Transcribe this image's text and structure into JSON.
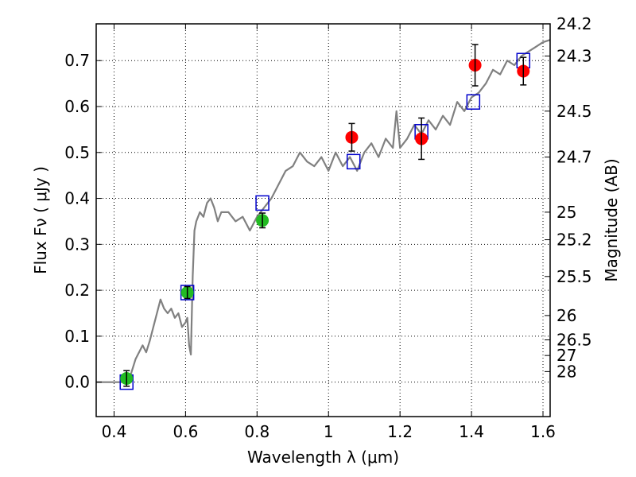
{
  "chart_data": {
    "type": "line",
    "xlabel": "Wavelength  λ (μm)",
    "ylabel": "Flux  Fν  ( μJy )",
    "y2label": "Magnitude (AB)",
    "xlim": [
      0.35,
      1.62
    ],
    "ylim": [
      -0.075,
      0.78
    ],
    "x_ticks": [
      0.4,
      0.6,
      0.8,
      1.0,
      1.2,
      1.4,
      1.6
    ],
    "x_tick_labels": [
      "0.4",
      "0.6",
      "0.8",
      "1",
      "1.2",
      "1.4",
      "1.6"
    ],
    "y_ticks": [
      0.0,
      0.1,
      0.2,
      0.3,
      0.4,
      0.5,
      0.6,
      0.7
    ],
    "y_tick_labels": [
      "0.0",
      "0.1",
      "0.2",
      "0.3",
      "0.4",
      "0.5",
      "0.6",
      "0.7"
    ],
    "magnitude_ticks": [
      {
        "mag": "24.2",
        "flux": 0.78
      },
      {
        "mag": "24.3",
        "flux": 0.71
      },
      {
        "mag": "24.5",
        "flux": 0.59
      },
      {
        "mag": "24.7",
        "flux": 0.49
      },
      {
        "mag": "25",
        "flux": 0.37
      },
      {
        "mag": "25.2",
        "flux": 0.31
      },
      {
        "mag": "25.5",
        "flux": 0.23
      },
      {
        "mag": "26",
        "flux": 0.145
      },
      {
        "mag": "26.5",
        "flux": 0.092
      },
      {
        "mag": "27",
        "flux": 0.058
      },
      {
        "mag": "28",
        "flux": 0.023
      }
    ],
    "grid": true,
    "colors": {
      "sed": "#808080",
      "model_box": "#0000cc",
      "detection": "#22bb22",
      "nir_detection": "#ff0000",
      "errorbar": "#000000"
    },
    "series": [
      {
        "kind": "line",
        "x": [
          0.35,
          0.44,
          0.46,
          0.48,
          0.49,
          0.5,
          0.51,
          0.52,
          0.53,
          0.54,
          0.55,
          0.56,
          0.57,
          0.58,
          0.59,
          0.6,
          0.605,
          0.61,
          0.615,
          0.62,
          0.625,
          0.63,
          0.64,
          0.65,
          0.66,
          0.67,
          0.68,
          0.69,
          0.7,
          0.72,
          0.74,
          0.76,
          0.78,
          0.8,
          0.81,
          0.82,
          0.84,
          0.86,
          0.88,
          0.9,
          0.92,
          0.94,
          0.96,
          0.98,
          1.0,
          1.02,
          1.04,
          1.06,
          1.08,
          1.1,
          1.12,
          1.14,
          1.16,
          1.18,
          1.19,
          1.2,
          1.22,
          1.24,
          1.26,
          1.28,
          1.3,
          1.32,
          1.34,
          1.36,
          1.38,
          1.4,
          1.42,
          1.44,
          1.46,
          1.48,
          1.5,
          1.52,
          1.54,
          1.56,
          1.58,
          1.6,
          1.62
        ],
        "y": [
          0.0,
          0.0,
          0.05,
          0.08,
          0.065,
          0.09,
          0.12,
          0.15,
          0.18,
          0.16,
          0.15,
          0.16,
          0.14,
          0.15,
          0.12,
          0.13,
          0.14,
          0.08,
          0.06,
          0.23,
          0.33,
          0.35,
          0.37,
          0.36,
          0.39,
          0.4,
          0.38,
          0.35,
          0.37,
          0.37,
          0.35,
          0.36,
          0.33,
          0.36,
          0.37,
          0.38,
          0.4,
          0.43,
          0.46,
          0.47,
          0.5,
          0.48,
          0.47,
          0.49,
          0.46,
          0.5,
          0.47,
          0.49,
          0.46,
          0.5,
          0.52,
          0.49,
          0.53,
          0.51,
          0.59,
          0.51,
          0.53,
          0.56,
          0.54,
          0.57,
          0.55,
          0.58,
          0.56,
          0.61,
          0.59,
          0.62,
          0.63,
          0.65,
          0.68,
          0.67,
          0.7,
          0.69,
          0.71,
          0.72,
          0.73,
          0.74,
          0.745
        ]
      },
      {
        "kind": "boxes",
        "x": [
          0.435,
          0.605,
          0.815,
          1.07,
          1.26,
          1.405,
          1.545
        ],
        "y": [
          0.0,
          0.195,
          0.39,
          0.48,
          0.545,
          0.61,
          0.7
        ]
      },
      {
        "kind": "points",
        "x": [
          0.435,
          0.605,
          0.815
        ],
        "y": [
          0.008,
          0.195,
          0.352
        ],
        "err": [
          0.017,
          0.013,
          0.016
        ]
      },
      {
        "kind": "points",
        "x": [
          1.065,
          1.26,
          1.41,
          1.545
        ],
        "y": [
          0.533,
          0.53,
          0.69,
          0.677
        ],
        "err": [
          0.03,
          0.045,
          0.045,
          0.03
        ]
      }
    ]
  }
}
